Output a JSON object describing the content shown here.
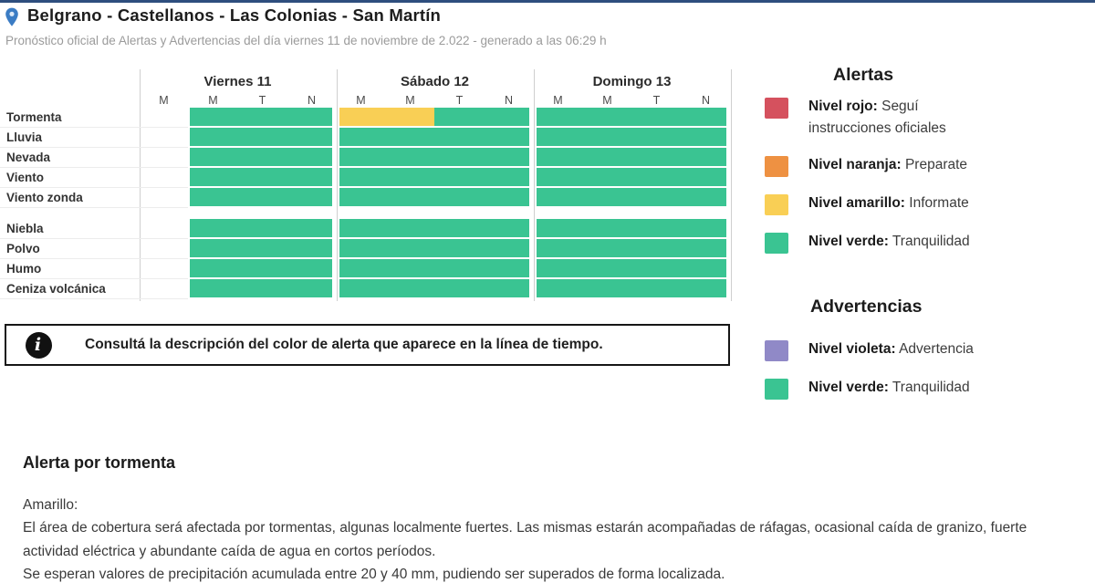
{
  "header": {
    "title": "Belgrano - Castellanos - Las Colonias - San Martín",
    "subtitle": "Pronóstico oficial de Alertas y Advertencias del día viernes 11 de noviembre de 2.022 - generado a las 06:29 h"
  },
  "colors": {
    "green": "#3ac492",
    "yellow": "#f9cf55",
    "red": "#d5515e",
    "orange": "#ee9142",
    "violet": "#9089c7",
    "accent_bar": "#2e4e7e",
    "pin_blue": "#3b7cc4"
  },
  "timeline": {
    "days": [
      {
        "label": "Viernes 11",
        "periods": [
          "M",
          "M",
          "T",
          "N"
        ]
      },
      {
        "label": "Sábado 12",
        "periods": [
          "M",
          "M",
          "T",
          "N"
        ]
      },
      {
        "label": "Domingo 13",
        "periods": [
          "M",
          "M",
          "T",
          "N"
        ]
      }
    ],
    "groups": [
      {
        "rows": [
          {
            "label": "Tormenta",
            "cells": [
              [
                null,
                "green",
                "green",
                "green"
              ],
              [
                "yellow",
                "yellow",
                "green",
                "green"
              ],
              [
                "green",
                "green",
                "green",
                "green"
              ]
            ]
          },
          {
            "label": "Lluvia",
            "cells": [
              [
                null,
                "green",
                "green",
                "green"
              ],
              [
                "green",
                "green",
                "green",
                "green"
              ],
              [
                "green",
                "green",
                "green",
                "green"
              ]
            ]
          },
          {
            "label": "Nevada",
            "cells": [
              [
                null,
                "green",
                "green",
                "green"
              ],
              [
                "green",
                "green",
                "green",
                "green"
              ],
              [
                "green",
                "green",
                "green",
                "green"
              ]
            ]
          },
          {
            "label": "Viento",
            "cells": [
              [
                null,
                "green",
                "green",
                "green"
              ],
              [
                "green",
                "green",
                "green",
                "green"
              ],
              [
                "green",
                "green",
                "green",
                "green"
              ]
            ]
          },
          {
            "label": "Viento zonda",
            "cells": [
              [
                null,
                "green",
                "green",
                "green"
              ],
              [
                "green",
                "green",
                "green",
                "green"
              ],
              [
                "green",
                "green",
                "green",
                "green"
              ]
            ]
          }
        ]
      },
      {
        "rows": [
          {
            "label": "Niebla",
            "cells": [
              [
                null,
                "green",
                "green",
                "green"
              ],
              [
                "green",
                "green",
                "green",
                "green"
              ],
              [
                "green",
                "green",
                "green",
                "green"
              ]
            ]
          },
          {
            "label": "Polvo",
            "cells": [
              [
                null,
                "green",
                "green",
                "green"
              ],
              [
                "green",
                "green",
                "green",
                "green"
              ],
              [
                "green",
                "green",
                "green",
                "green"
              ]
            ]
          },
          {
            "label": "Humo",
            "cells": [
              [
                null,
                "green",
                "green",
                "green"
              ],
              [
                "green",
                "green",
                "green",
                "green"
              ],
              [
                "green",
                "green",
                "green",
                "green"
              ]
            ]
          },
          {
            "label": "Ceniza volcánica",
            "cells": [
              [
                null,
                "green",
                "green",
                "green"
              ],
              [
                "green",
                "green",
                "green",
                "green"
              ],
              [
                "green",
                "green",
                "green",
                "green"
              ]
            ]
          }
        ]
      }
    ]
  },
  "info_box": {
    "text": "Consultá la descripción del color de alerta que aparece en la línea de tiempo."
  },
  "legend": {
    "alerts_title": "Alertas",
    "alerts": [
      {
        "color": "red",
        "label": "Nivel rojo:",
        "desc": "Seguí instrucciones oficiales"
      },
      {
        "color": "orange",
        "label": "Nivel naranja:",
        "desc": "Preparate"
      },
      {
        "color": "yellow",
        "label": "Nivel amarillo:",
        "desc": "Informate"
      },
      {
        "color": "green",
        "label": "Nivel verde:",
        "desc": "Tranquilidad"
      }
    ],
    "warnings_title": "Advertencias",
    "warnings": [
      {
        "color": "violet",
        "label": "Nivel violeta:",
        "desc": "Advertencia"
      },
      {
        "color": "green",
        "label": "Nivel verde:",
        "desc": "Tranquilidad"
      }
    ]
  },
  "alert_detail": {
    "title": "Alerta por tormenta",
    "level": "Amarillo:",
    "paragraphs": [
      "El área de cobertura será afectada por tormentas, algunas localmente fuertes. Las mismas estarán acompañadas de ráfagas, ocasional caída de granizo, fuerte actividad eléctrica y abundante caída de agua en cortos períodos.",
      "Se esperan valores de precipitación acumulada entre 20 y 40 mm, pudiendo ser superados de forma localizada."
    ]
  }
}
